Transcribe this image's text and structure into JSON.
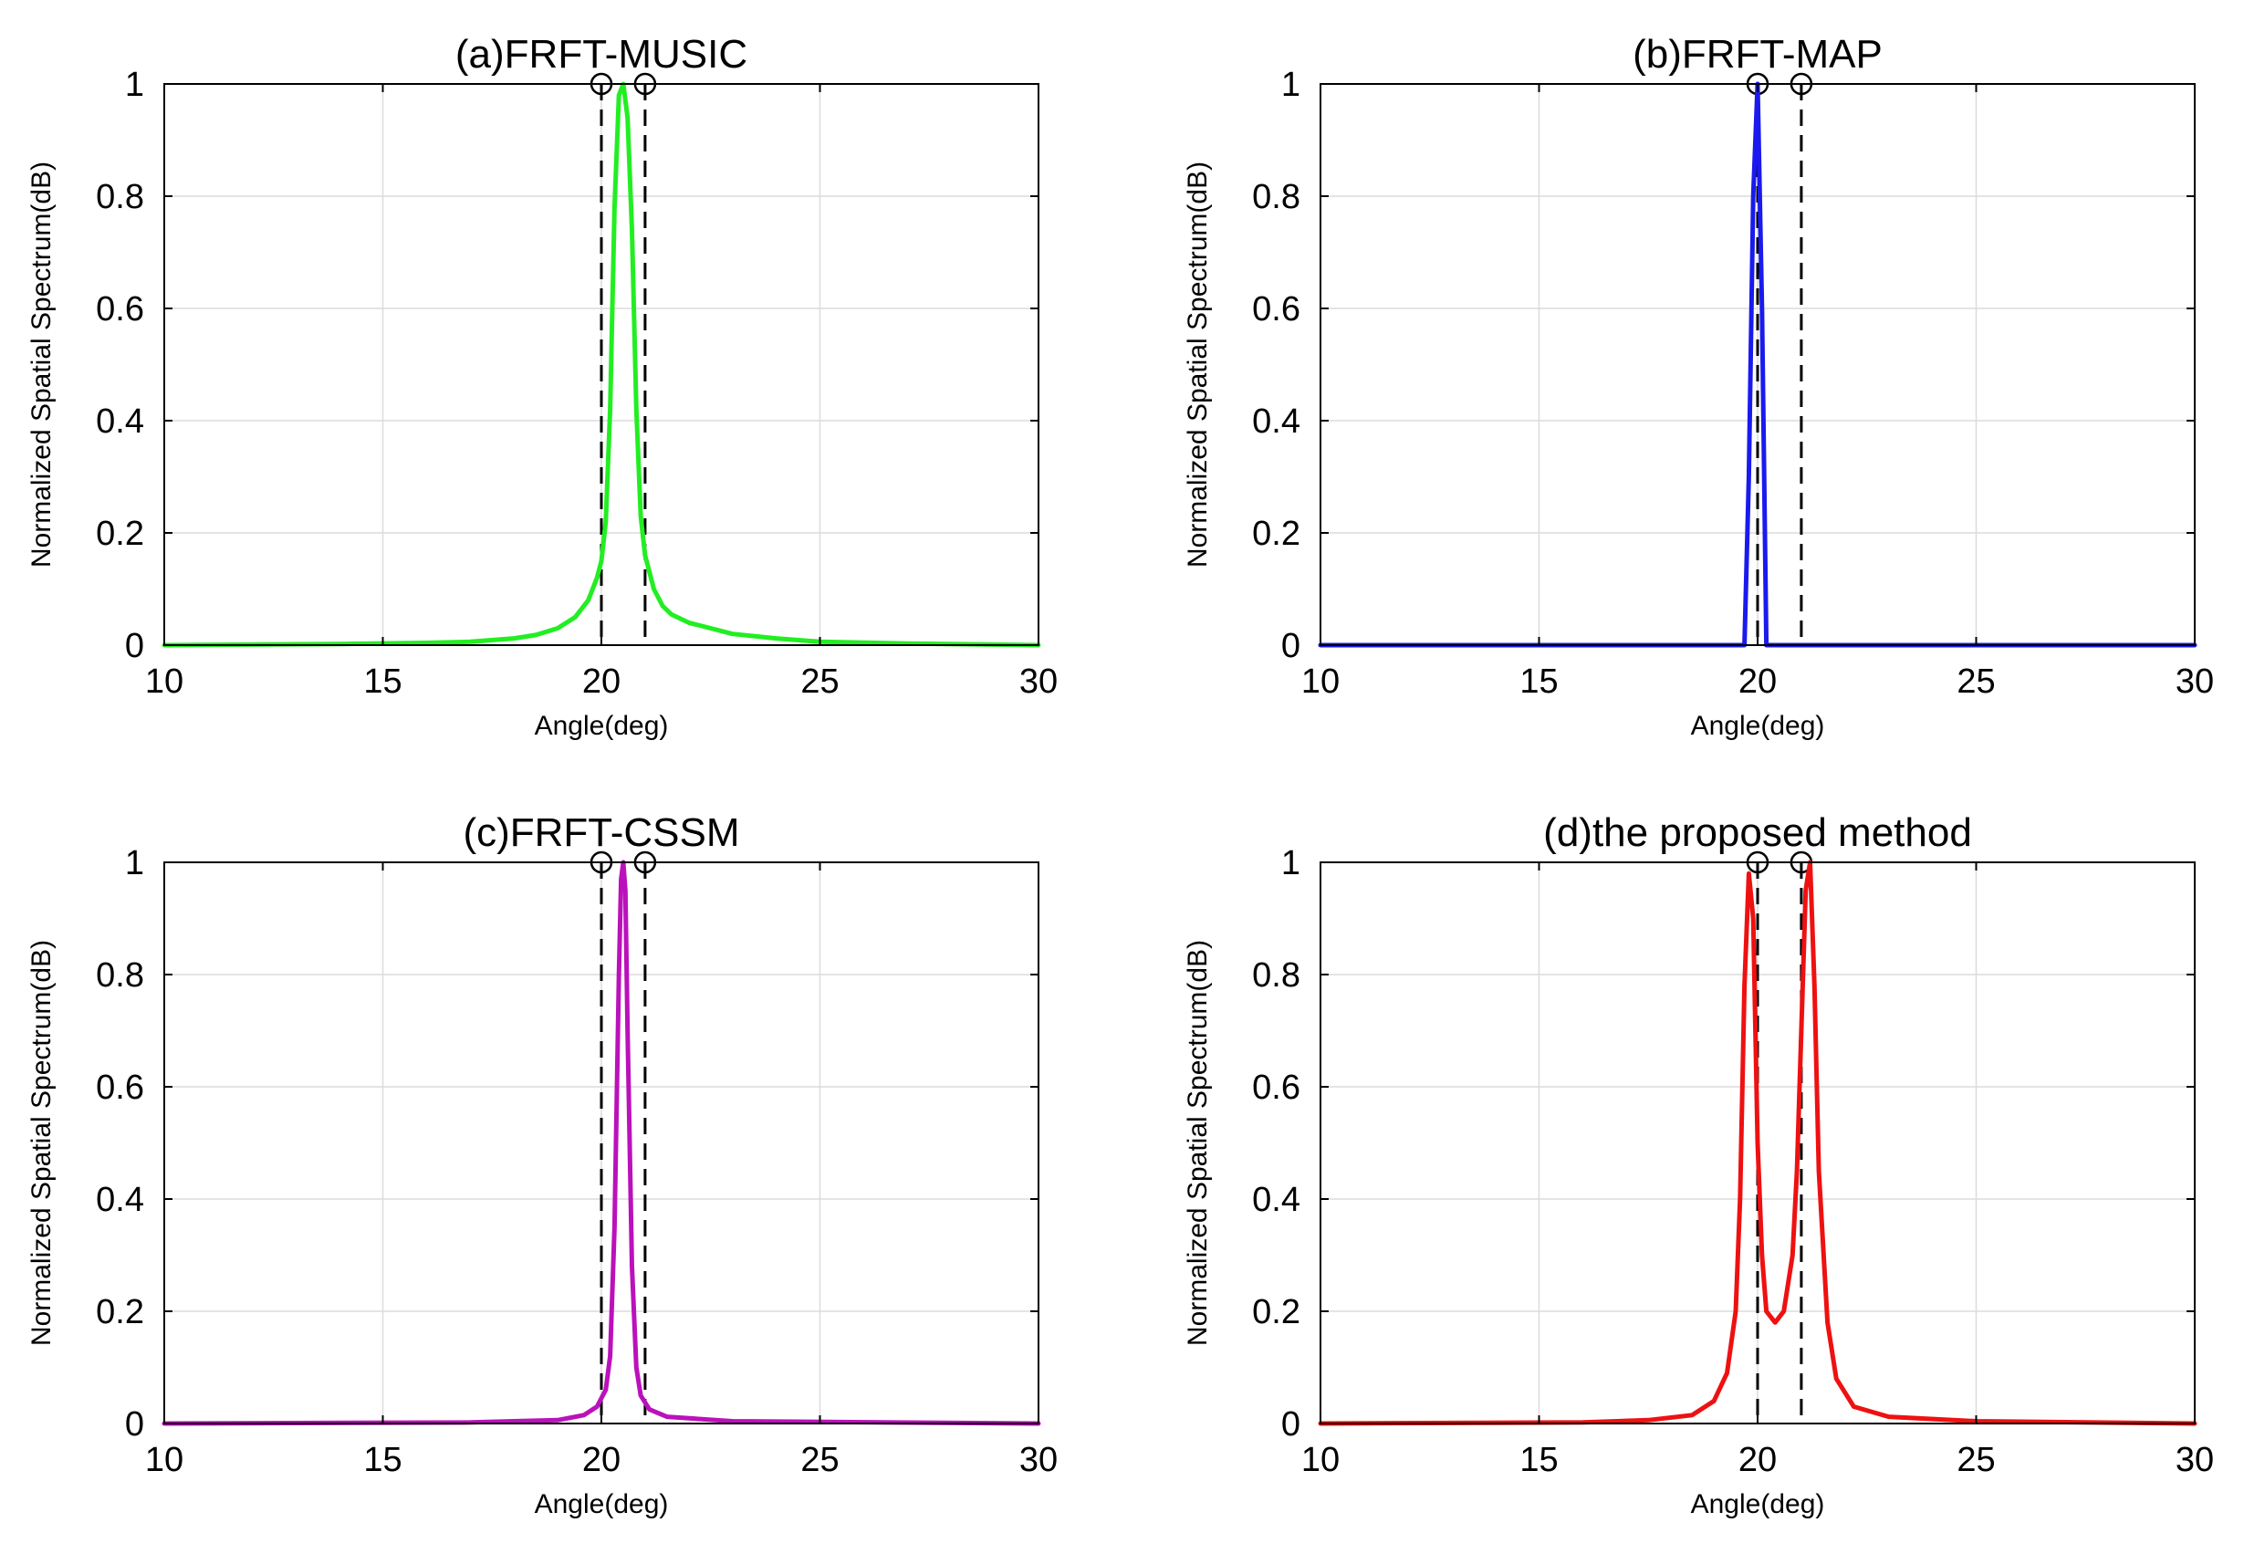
{
  "chart_data": [
    {
      "type": "line",
      "title": "(a)FRFT-MUSIC",
      "xlabel": "Angle(deg)",
      "ylabel": "Normalized Spatial Spectrum(dB)",
      "xlim": [
        10,
        30
      ],
      "ylim": [
        0,
        1
      ],
      "xticks": [
        "10",
        "15",
        "20",
        "25",
        "30"
      ],
      "yticks": [
        "0",
        "0.2",
        "0.4",
        "0.6",
        "0.8",
        "1"
      ],
      "grid": true,
      "color": "#22ee22",
      "true_angles": [
        20,
        21
      ],
      "series": [
        {
          "name": "FRFT-MUSIC",
          "x": [
            10,
            14,
            16,
            17,
            18,
            18.5,
            19,
            19.4,
            19.7,
            19.9,
            20.0,
            20.1,
            20.2,
            20.3,
            20.4,
            20.5,
            20.6,
            20.7,
            20.8,
            20.9,
            21.0,
            21.1,
            21.2,
            21.4,
            21.6,
            22.0,
            22.5,
            23,
            24,
            25,
            27,
            30
          ],
          "y": [
            0,
            0.002,
            0.004,
            0.006,
            0.012,
            0.018,
            0.03,
            0.05,
            0.08,
            0.12,
            0.15,
            0.22,
            0.42,
            0.78,
            0.98,
            1.0,
            0.94,
            0.74,
            0.42,
            0.23,
            0.16,
            0.13,
            0.1,
            0.07,
            0.055,
            0.04,
            0.03,
            0.02,
            0.012,
            0.006,
            0.003,
            0
          ]
        }
      ]
    },
    {
      "type": "line",
      "title": "(b)FRFT-MAP",
      "xlabel": "Angle(deg)",
      "ylabel": "Normalized Spatial Spectrum(dB)",
      "xlim": [
        10,
        30
      ],
      "ylim": [
        0,
        1
      ],
      "xticks": [
        "10",
        "15",
        "20",
        "25",
        "30"
      ],
      "yticks": [
        "0",
        "0.2",
        "0.4",
        "0.6",
        "0.8",
        "1"
      ],
      "grid": true,
      "color": "#1a1aee",
      "true_angles": [
        20,
        21
      ],
      "series": [
        {
          "name": "FRFT-MAP",
          "x": [
            10,
            19.7,
            19.8,
            19.9,
            20.0,
            20.1,
            20.2,
            30
          ],
          "y": [
            0,
            0,
            0.3,
            0.8,
            1.0,
            0.6,
            0,
            0
          ]
        }
      ]
    },
    {
      "type": "line",
      "title": "(c)FRFT-CSSM",
      "xlabel": "Angle(deg)",
      "ylabel": "Normalized Spatial Spectrum(dB)",
      "xlim": [
        10,
        30
      ],
      "ylim": [
        0,
        1
      ],
      "xticks": [
        "10",
        "15",
        "20",
        "25",
        "30"
      ],
      "yticks": [
        "0",
        "0.2",
        "0.4",
        "0.6",
        "0.8",
        "1"
      ],
      "grid": true,
      "color": "#bb11bb",
      "true_angles": [
        20,
        21
      ],
      "series": [
        {
          "name": "FRFT-CSSM",
          "x": [
            10,
            17,
            19,
            19.6,
            19.9,
            20.1,
            20.2,
            20.3,
            20.4,
            20.45,
            20.5,
            20.55,
            20.6,
            20.7,
            20.8,
            20.9,
            21.1,
            21.5,
            23,
            30
          ],
          "y": [
            0,
            0.002,
            0.006,
            0.015,
            0.03,
            0.06,
            0.12,
            0.35,
            0.8,
            0.97,
            1.0,
            0.95,
            0.7,
            0.28,
            0.1,
            0.05,
            0.025,
            0.012,
            0.004,
            0
          ]
        }
      ]
    },
    {
      "type": "line",
      "title": "(d)the proposed method",
      "xlabel": "Angle(deg)",
      "ylabel": "Normalized Spatial Spectrum(dB)",
      "xlim": [
        10,
        30
      ],
      "ylim": [
        0,
        1
      ],
      "xticks": [
        "10",
        "15",
        "20",
        "25",
        "30"
      ],
      "yticks": [
        "0",
        "0.2",
        "0.4",
        "0.6",
        "0.8",
        "1"
      ],
      "grid": true,
      "color": "#ee1111",
      "true_angles": [
        20,
        21
      ],
      "series": [
        {
          "name": "the proposed method",
          "x": [
            10,
            16,
            17.5,
            18.5,
            19.0,
            19.3,
            19.5,
            19.6,
            19.7,
            19.8,
            19.9,
            20.0,
            20.1,
            20.2,
            20.4,
            20.6,
            20.8,
            20.9,
            21.0,
            21.1,
            21.2,
            21.3,
            21.4,
            21.6,
            21.8,
            22.2,
            23,
            25,
            30
          ],
          "y": [
            0,
            0.002,
            0.006,
            0.015,
            0.04,
            0.09,
            0.2,
            0.4,
            0.78,
            0.98,
            0.9,
            0.5,
            0.3,
            0.2,
            0.18,
            0.2,
            0.3,
            0.45,
            0.7,
            0.95,
            1.0,
            0.78,
            0.45,
            0.18,
            0.08,
            0.03,
            0.012,
            0.004,
            0
          ]
        }
      ]
    }
  ]
}
